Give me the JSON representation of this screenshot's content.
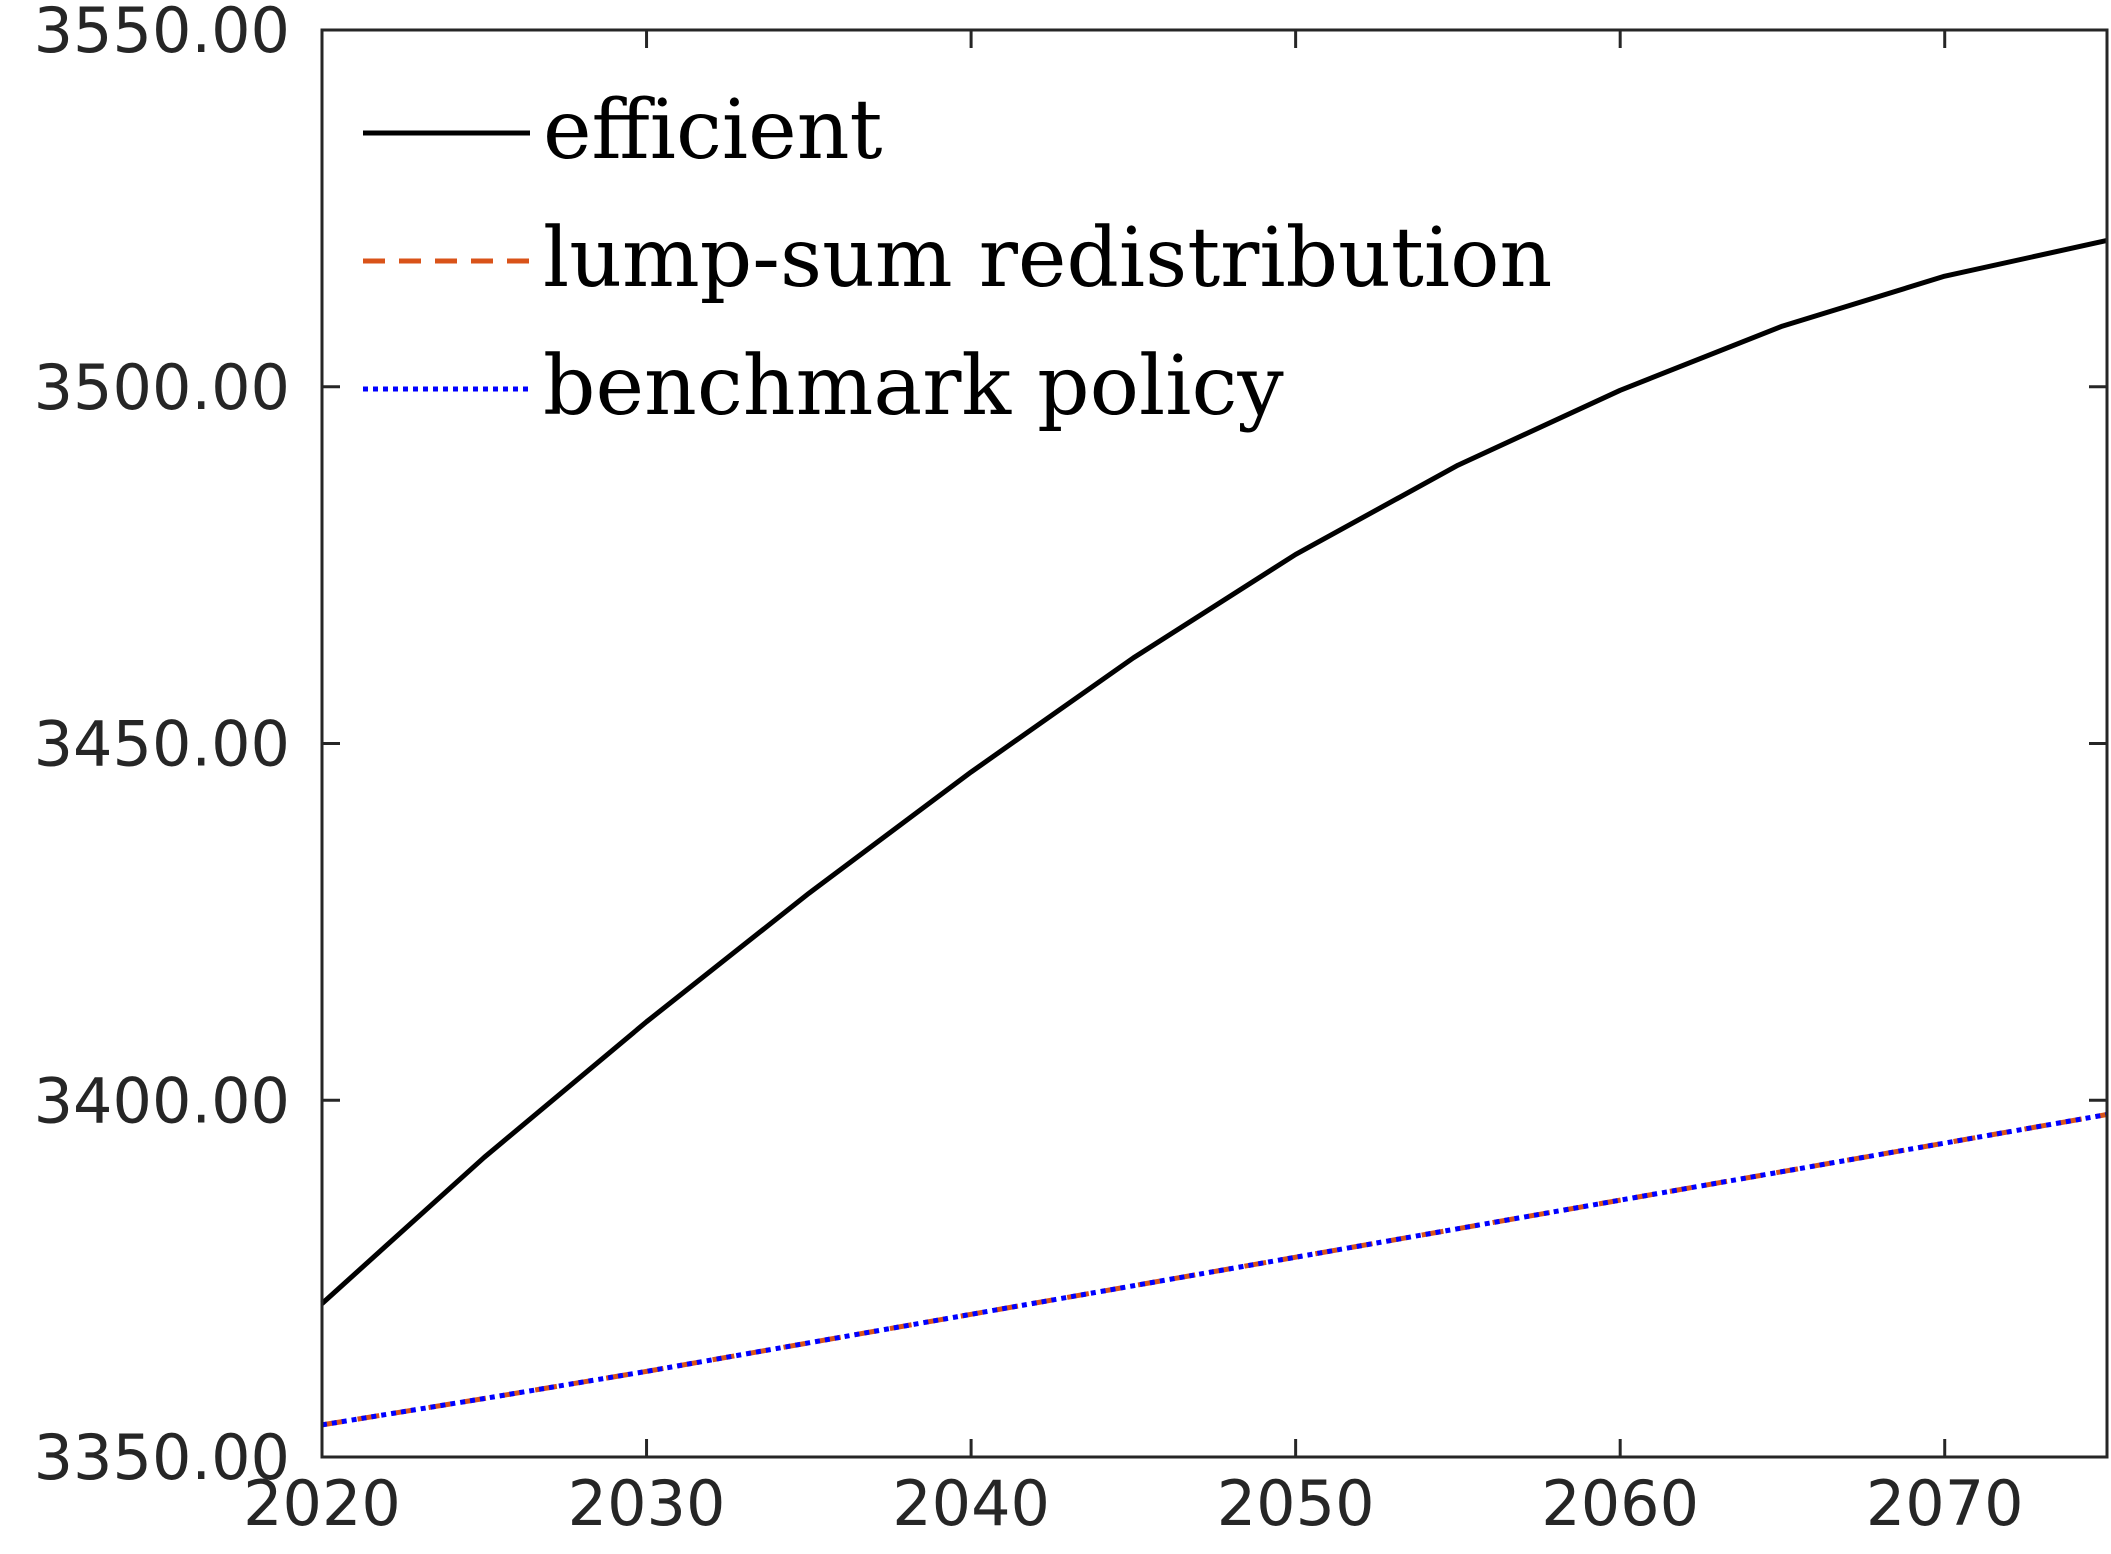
{
  "chart_data": {
    "type": "line",
    "title": "",
    "xlabel": "",
    "ylabel": "",
    "xlim": [
      2020,
      2075
    ],
    "ylim": [
      3350,
      3550
    ],
    "grid": false,
    "legend_position": "top-left",
    "x_ticks": [
      2020,
      2030,
      2040,
      2050,
      2060,
      2070
    ],
    "x_tick_labels": [
      "2020",
      "2030",
      "2040",
      "2050",
      "2060",
      "2070"
    ],
    "y_ticks": [
      3350,
      3400,
      3450,
      3500,
      3550
    ],
    "y_tick_labels": [
      "3350.00",
      "3400.00",
      "3450.00",
      "3500.00",
      "3550.00"
    ],
    "x": [
      2020,
      2025,
      2030,
      2035,
      2040,
      2045,
      2050,
      2055,
      2060,
      2065,
      2070,
      2075
    ],
    "series": [
      {
        "name": "efficient",
        "color": "#000000",
        "style": "solid",
        "values": [
          3371.5,
          3392.0,
          3411.0,
          3429.0,
          3446.0,
          3462.0,
          3476.5,
          3489.0,
          3499.5,
          3508.5,
          3515.5,
          3520.5
        ]
      },
      {
        "name": "lump-sum redistribution",
        "color": "#D95319",
        "style": "dashed",
        "values": [
          3354.5,
          3358.2,
          3362.0,
          3366.0,
          3370.0,
          3374.0,
          3378.0,
          3382.0,
          3386.0,
          3390.0,
          3394.0,
          3398.0
        ]
      },
      {
        "name": "benchmark policy",
        "color": "#0000FF",
        "style": "dotted",
        "values": [
          3354.5,
          3358.2,
          3362.0,
          3366.0,
          3370.0,
          3374.0,
          3378.0,
          3382.0,
          3386.0,
          3390.0,
          3394.0,
          3398.0
        ]
      }
    ]
  }
}
